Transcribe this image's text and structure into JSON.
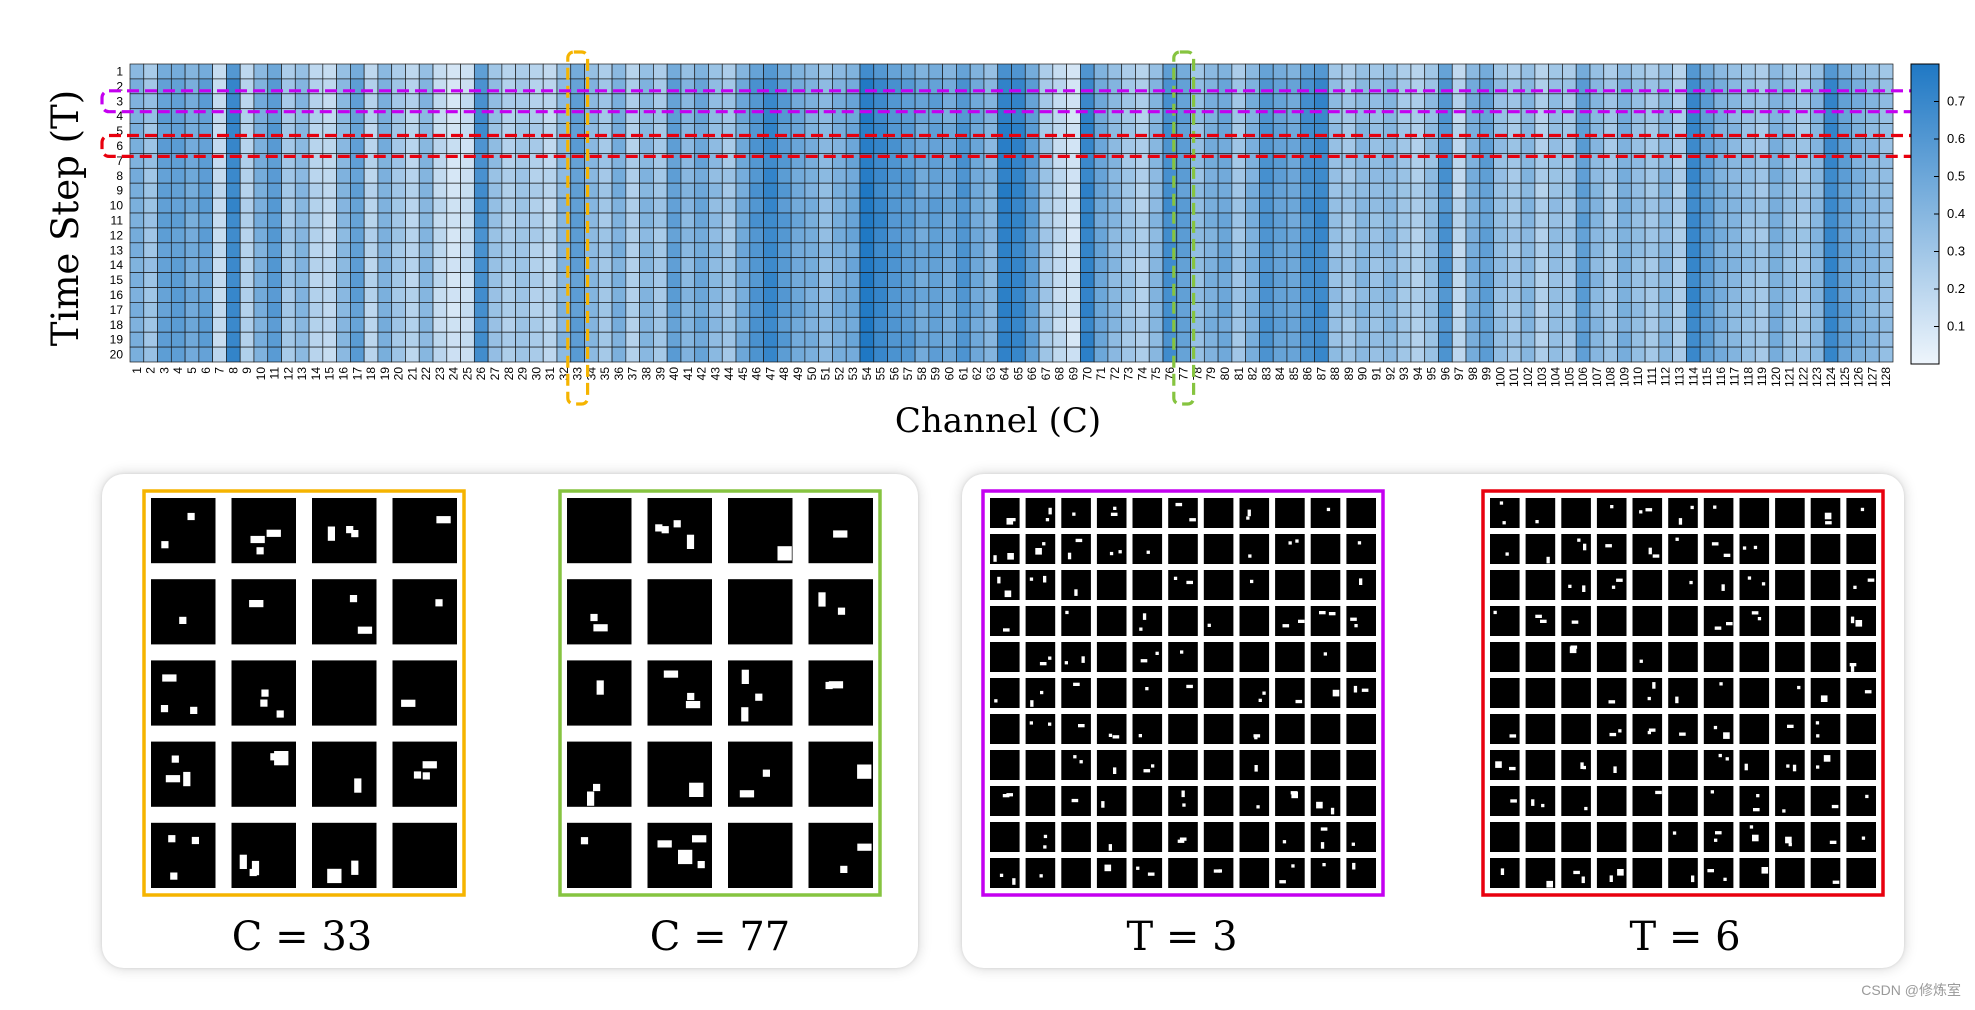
{
  "chart_data": {
    "type": "heatmap",
    "xlabel": "Channel (C)",
    "ylabel": "Time Step (T)",
    "x_ticks": [
      "1",
      "2",
      "3",
      "4",
      "5",
      "6",
      "7",
      "8",
      "9",
      "10",
      "11",
      "12",
      "13",
      "14",
      "15",
      "16",
      "17",
      "18",
      "19",
      "20",
      "21",
      "22",
      "23",
      "24",
      "25",
      "26",
      "27",
      "28",
      "29",
      "30",
      "31",
      "32",
      "33",
      "34",
      "35",
      "36",
      "37",
      "38",
      "39",
      "40",
      "41",
      "42",
      "43",
      "44",
      "45",
      "46",
      "47",
      "48",
      "49",
      "50",
      "51",
      "52",
      "53",
      "54",
      "55",
      "56",
      "57",
      "58",
      "59",
      "60",
      "61",
      "62",
      "63",
      "64",
      "65",
      "66",
      "67",
      "68",
      "69",
      "70",
      "71",
      "72",
      "73",
      "74",
      "75",
      "76",
      "77",
      "78",
      "79",
      "80",
      "81",
      "82",
      "83",
      "84",
      "85",
      "86",
      "87",
      "88",
      "89",
      "90",
      "91",
      "92",
      "93",
      "94",
      "95",
      "96",
      "97",
      "98",
      "99",
      "100",
      "101",
      "102",
      "103",
      "104",
      "105",
      "106",
      "107",
      "108",
      "109",
      "110",
      "111",
      "112",
      "113",
      "114",
      "115",
      "116",
      "117",
      "118",
      "119",
      "120",
      "121",
      "122",
      "123",
      "124",
      "125",
      "126",
      "127",
      "128"
    ],
    "y_ticks": [
      "1",
      "2",
      "3",
      "4",
      "5",
      "6",
      "7",
      "8",
      "9",
      "10",
      "11",
      "12",
      "13",
      "14",
      "15",
      "16",
      "17",
      "18",
      "19",
      "20"
    ],
    "colorbar": {
      "ticks": [
        "0.1",
        "0.2",
        "0.3",
        "0.4",
        "0.5",
        "0.6",
        "0.7"
      ],
      "range": [
        0.0,
        0.8
      ],
      "low_color": "#eef5fc",
      "high_color": "#1f78c4"
    },
    "channel_mean_values": [
      0.45,
      0.32,
      0.55,
      0.55,
      0.48,
      0.55,
      0.18,
      0.7,
      0.22,
      0.45,
      0.58,
      0.3,
      0.4,
      0.22,
      0.18,
      0.4,
      0.55,
      0.22,
      0.45,
      0.3,
      0.22,
      0.4,
      0.18,
      0.12,
      0.15,
      0.65,
      0.35,
      0.25,
      0.3,
      0.25,
      0.2,
      0.4,
      0.55,
      0.4,
      0.3,
      0.45,
      0.25,
      0.4,
      0.3,
      0.55,
      0.4,
      0.5,
      0.38,
      0.3,
      0.48,
      0.62,
      0.7,
      0.58,
      0.5,
      0.45,
      0.38,
      0.45,
      0.5,
      0.78,
      0.7,
      0.62,
      0.58,
      0.5,
      0.55,
      0.48,
      0.62,
      0.5,
      0.4,
      0.75,
      0.72,
      0.55,
      0.3,
      0.18,
      0.12,
      0.72,
      0.5,
      0.4,
      0.3,
      0.25,
      0.4,
      0.65,
      0.55,
      0.35,
      0.45,
      0.5,
      0.3,
      0.45,
      0.62,
      0.55,
      0.5,
      0.65,
      0.7,
      0.35,
      0.3,
      0.4,
      0.35,
      0.4,
      0.3,
      0.25,
      0.35,
      0.62,
      0.2,
      0.45,
      0.55,
      0.35,
      0.3,
      0.4,
      0.25,
      0.35,
      0.3,
      0.55,
      0.4,
      0.3,
      0.45,
      0.35,
      0.3,
      0.4,
      0.25,
      0.7,
      0.55,
      0.45,
      0.4,
      0.35,
      0.3,
      0.45,
      0.35,
      0.3,
      0.4,
      0.7,
      0.55,
      0.45,
      0.4,
      0.35
    ],
    "highlights": [
      {
        "kind": "column",
        "index": 33,
        "color": "#f5b400"
      },
      {
        "kind": "column",
        "index": 77,
        "color": "#86c440"
      },
      {
        "kind": "row",
        "index": 3,
        "color": "#c400f0"
      },
      {
        "kind": "row",
        "index": 6,
        "color": "#e8000e"
      }
    ]
  },
  "panels": {
    "left": {
      "captions": [
        "C = 33",
        "C = 77"
      ],
      "colors": [
        "#f5b400",
        "#86c440"
      ]
    },
    "right": {
      "captions": [
        "T = 3",
        "T = 6"
      ],
      "colors": [
        "#c400f0",
        "#e8000e"
      ]
    }
  },
  "watermark": "CSDN @修炼室"
}
